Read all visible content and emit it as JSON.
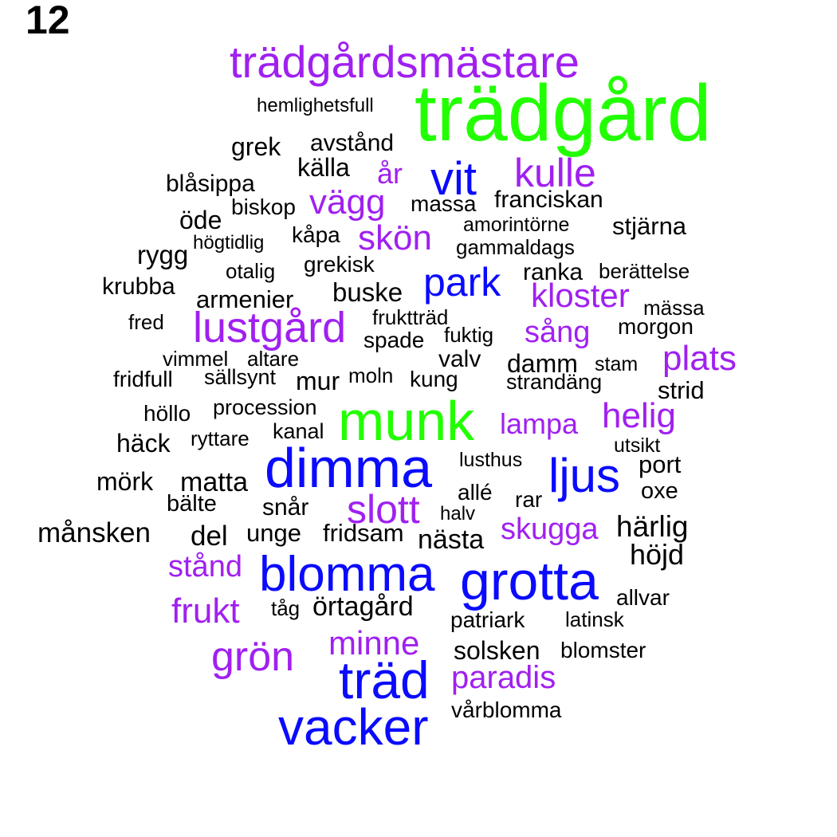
{
  "label": "12",
  "colors": {
    "green": "#22ff00",
    "blue": "#0a0aff",
    "purple": "#a020f0",
    "black": "#000000"
  },
  "words": [
    {
      "text": "trädgård",
      "color": "green"
    },
    {
      "text": "trädgårdsmästare",
      "color": "purple"
    },
    {
      "text": "hemlighetsfull",
      "color": "black"
    },
    {
      "text": "grek",
      "color": "black"
    },
    {
      "text": "avstånd",
      "color": "black"
    },
    {
      "text": "källa",
      "color": "black"
    },
    {
      "text": "år",
      "color": "purple"
    },
    {
      "text": "vit",
      "color": "blue"
    },
    {
      "text": "kulle",
      "color": "purple"
    },
    {
      "text": "blåsippa",
      "color": "black"
    },
    {
      "text": "vägg",
      "color": "purple"
    },
    {
      "text": "massa",
      "color": "black"
    },
    {
      "text": "franciskan",
      "color": "black"
    },
    {
      "text": "öde",
      "color": "black"
    },
    {
      "text": "biskop",
      "color": "black"
    },
    {
      "text": "amorintörne",
      "color": "black"
    },
    {
      "text": "stjärna",
      "color": "black"
    },
    {
      "text": "kåpa",
      "color": "black"
    },
    {
      "text": "skön",
      "color": "purple"
    },
    {
      "text": "högtidlig",
      "color": "black"
    },
    {
      "text": "gammaldags",
      "color": "black"
    },
    {
      "text": "rygg",
      "color": "black"
    },
    {
      "text": "grekisk",
      "color": "black"
    },
    {
      "text": "otalig",
      "color": "black"
    },
    {
      "text": "ranka",
      "color": "black"
    },
    {
      "text": "berättelse",
      "color": "black"
    },
    {
      "text": "park",
      "color": "blue"
    },
    {
      "text": "krubba",
      "color": "black"
    },
    {
      "text": "buske",
      "color": "black"
    },
    {
      "text": "kloster",
      "color": "purple"
    },
    {
      "text": "armenier",
      "color": "black"
    },
    {
      "text": "mässa",
      "color": "black"
    },
    {
      "text": "fred",
      "color": "black"
    },
    {
      "text": "lustgård",
      "color": "purple"
    },
    {
      "text": "fruktträd",
      "color": "black"
    },
    {
      "text": "morgon",
      "color": "black"
    },
    {
      "text": "sång",
      "color": "purple"
    },
    {
      "text": "fuktig",
      "color": "black"
    },
    {
      "text": "spade",
      "color": "black"
    },
    {
      "text": "plats",
      "color": "purple"
    },
    {
      "text": "vimmel",
      "color": "black"
    },
    {
      "text": "altare",
      "color": "black"
    },
    {
      "text": "valv",
      "color": "black"
    },
    {
      "text": "damm",
      "color": "black"
    },
    {
      "text": "stam",
      "color": "black"
    },
    {
      "text": "fridfull",
      "color": "black"
    },
    {
      "text": "sällsynt",
      "color": "black"
    },
    {
      "text": "mur",
      "color": "black"
    },
    {
      "text": "moln",
      "color": "black"
    },
    {
      "text": "kung",
      "color": "black"
    },
    {
      "text": "strandäng",
      "color": "black"
    },
    {
      "text": "strid",
      "color": "black"
    },
    {
      "text": "munk",
      "color": "green"
    },
    {
      "text": "höllo",
      "color": "black"
    },
    {
      "text": "procession",
      "color": "black"
    },
    {
      "text": "helig",
      "color": "purple"
    },
    {
      "text": "lampa",
      "color": "purple"
    },
    {
      "text": "häck",
      "color": "black"
    },
    {
      "text": "ryttare",
      "color": "black"
    },
    {
      "text": "kanal",
      "color": "black"
    },
    {
      "text": "utsikt",
      "color": "black"
    },
    {
      "text": "dimma",
      "color": "blue"
    },
    {
      "text": "lusthus",
      "color": "black"
    },
    {
      "text": "ljus",
      "color": "blue"
    },
    {
      "text": "port",
      "color": "black"
    },
    {
      "text": "mörk",
      "color": "black"
    },
    {
      "text": "matta",
      "color": "black"
    },
    {
      "text": "oxe",
      "color": "black"
    },
    {
      "text": "allé",
      "color": "black"
    },
    {
      "text": "rar",
      "color": "black"
    },
    {
      "text": "bälte",
      "color": "black"
    },
    {
      "text": "snår",
      "color": "black"
    },
    {
      "text": "slott",
      "color": "purple"
    },
    {
      "text": "halv",
      "color": "black"
    },
    {
      "text": "månsken",
      "color": "black"
    },
    {
      "text": "del",
      "color": "black"
    },
    {
      "text": "unge",
      "color": "black"
    },
    {
      "text": "fridsam",
      "color": "black"
    },
    {
      "text": "nästa",
      "color": "black"
    },
    {
      "text": "skugga",
      "color": "purple"
    },
    {
      "text": "härlig",
      "color": "black"
    },
    {
      "text": "höjd",
      "color": "black"
    },
    {
      "text": "stånd",
      "color": "purple"
    },
    {
      "text": "blomma",
      "color": "blue"
    },
    {
      "text": "grotta",
      "color": "blue"
    },
    {
      "text": "allvar",
      "color": "black"
    },
    {
      "text": "frukt",
      "color": "purple"
    },
    {
      "text": "tåg",
      "color": "black"
    },
    {
      "text": "örtagård",
      "color": "black"
    },
    {
      "text": "patriark",
      "color": "black"
    },
    {
      "text": "latinsk",
      "color": "black"
    },
    {
      "text": "minne",
      "color": "purple"
    },
    {
      "text": "grön",
      "color": "purple"
    },
    {
      "text": "solsken",
      "color": "black"
    },
    {
      "text": "blomster",
      "color": "black"
    },
    {
      "text": "träd",
      "color": "blue"
    },
    {
      "text": "paradis",
      "color": "purple"
    },
    {
      "text": "vårblomma",
      "color": "black"
    },
    {
      "text": "vacker",
      "color": "blue"
    }
  ]
}
